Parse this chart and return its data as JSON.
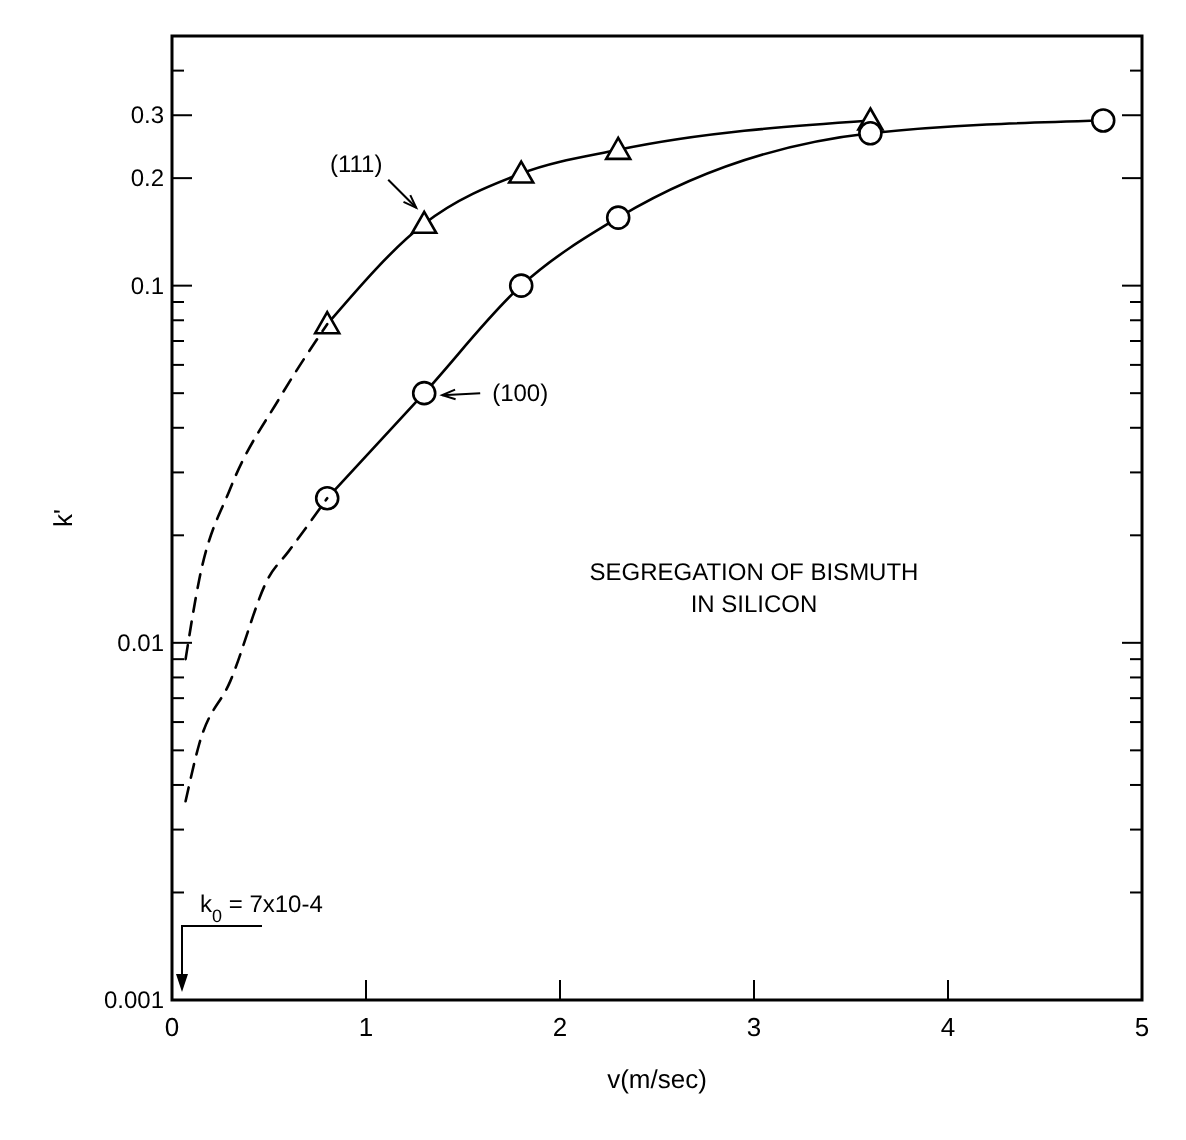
{
  "chart_data": {
    "type": "line",
    "xlabel": "v(m/sec)",
    "ylabel": "k'",
    "log": "y",
    "xlim": [
      0,
      5
    ],
    "xticks": [
      0,
      1,
      2,
      3,
      4,
      5
    ],
    "ylim": [
      0.001,
      0.5
    ],
    "yticks": [
      {
        "value": 0.001,
        "label": "0.001"
      },
      {
        "value": 0.002,
        "label": null
      },
      {
        "value": 0.003,
        "label": null
      },
      {
        "value": 0.004,
        "label": null
      },
      {
        "value": 0.005,
        "label": null
      },
      {
        "value": 0.006,
        "label": null
      },
      {
        "value": 0.007,
        "label": null
      },
      {
        "value": 0.008,
        "label": null
      },
      {
        "value": 0.009,
        "label": null
      },
      {
        "value": 0.01,
        "label": "0.01"
      },
      {
        "value": 0.02,
        "label": null
      },
      {
        "value": 0.03,
        "label": null
      },
      {
        "value": 0.04,
        "label": null
      },
      {
        "value": 0.05,
        "label": null
      },
      {
        "value": 0.06,
        "label": null
      },
      {
        "value": 0.07,
        "label": null
      },
      {
        "value": 0.08,
        "label": null
      },
      {
        "value": 0.09,
        "label": null
      },
      {
        "value": 0.1,
        "label": "0.1"
      },
      {
        "value": 0.2,
        "label": "0.2"
      },
      {
        "value": 0.3,
        "label": "0.3"
      },
      {
        "value": 0.4,
        "label": null
      }
    ],
    "series": [
      {
        "name": "(111)",
        "color": "#000000",
        "marker": "triangle",
        "line_style": "solid",
        "x": [
          0.8,
          1.3,
          1.8,
          2.3,
          3.6
        ],
        "values": [
          0.078,
          0.149,
          0.206,
          0.24,
          0.29
        ]
      },
      {
        "name": "(100)",
        "color": "#000000",
        "marker": "circle",
        "line_style": "solid",
        "x": [
          0.8,
          1.3,
          1.8,
          2.3,
          3.6,
          4.8
        ],
        "values": [
          0.0254,
          0.05,
          0.1,
          0.155,
          0.267,
          0.29
        ]
      },
      {
        "color": "#000000",
        "marker": "none",
        "line_style": "dashed",
        "x": [
          0.07,
          0.14,
          0.3,
          0.56,
          0.8
        ],
        "values": [
          0.009,
          0.015,
          0.027,
          0.049,
          0.078
        ]
      },
      {
        "color": "#000000",
        "marker": "none",
        "line_style": "dashed",
        "x": [
          0.07,
          0.14,
          0.3,
          0.5,
          0.6,
          0.8
        ],
        "values": [
          0.0036,
          0.0052,
          0.0078,
          0.0153,
          0.018,
          0.0254
        ]
      }
    ],
    "annotations": [
      "SEGREGATION OF BISMUTH\nIN SILICON",
      "k$_{0}$ = 7x10-4"
    ]
  }
}
